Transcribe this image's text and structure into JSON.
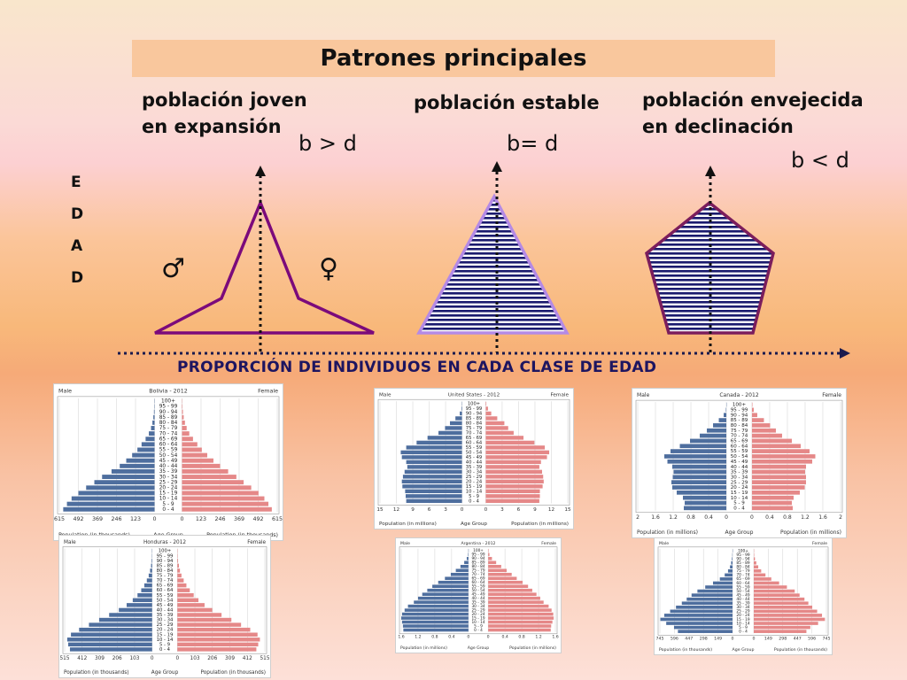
{
  "title": "Patrones principales",
  "columns": [
    {
      "label_line1": "población joven",
      "label_line2": "en expansión",
      "relation": "b > d"
    },
    {
      "label_line1": "población estable",
      "label_line2": "",
      "relation": "b= d"
    },
    {
      "label_line1": "población envejecida",
      "label_line2": "en declinación",
      "relation": "b < d"
    }
  ],
  "y_axis_letters": [
    "E",
    "D",
    "A",
    "D"
  ],
  "male_symbol": "♂",
  "female_symbol": "♀",
  "x_axis_title": "PROPORCIÓN DE INDIVIDUOS EN CADA CLASE DE EDAD",
  "colors": {
    "male_bar": "#4e6e9e",
    "female_bar": "#e58888",
    "shape_purple": "#7b0a7b",
    "stripe_navy": "#1a1a6e"
  },
  "pyramid_common": {
    "male": "Male",
    "female": "Female",
    "age_group": "Age Group",
    "age_groups": [
      "100+",
      "95 - 99",
      "90 - 94",
      "85 - 89",
      "80 - 84",
      "75 - 79",
      "70 - 74",
      "65 - 69",
      "60 - 64",
      "55 - 59",
      "50 - 54",
      "45 - 49",
      "40 - 44",
      "35 - 39",
      "30 - 34",
      "25 - 29",
      "20 - 24",
      "15 - 19",
      "10 - 14",
      "5 - 9",
      "0 - 4"
    ]
  },
  "chart_data": [
    {
      "type": "bar",
      "title": "Bolivia - 2012",
      "male_ticks": [
        "615",
        "492",
        "369",
        "246",
        "123",
        "0"
      ],
      "female_ticks": [
        "0",
        "123",
        "246",
        "369",
        "492",
        "615"
      ],
      "male_xlabel": "Population (in thousands)",
      "female_xlabel": "Population (in thousands)",
      "male": [
        1,
        2,
        4,
        8,
        14,
        23,
        37,
        58,
        84,
        111,
        145,
        183,
        225,
        278,
        339,
        389,
        442,
        492,
        536,
        566,
        590
      ],
      "female": [
        1,
        3,
        6,
        11,
        19,
        30,
        47,
        71,
        99,
        128,
        163,
        203,
        246,
        298,
        351,
        398,
        447,
        494,
        532,
        558,
        580
      ]
    },
    {
      "type": "bar",
      "title": "Honduras - 2012",
      "male_ticks": [
        "515",
        "412",
        "309",
        "206",
        "103",
        "0"
      ],
      "female_ticks": [
        "0",
        "103",
        "206",
        "309",
        "412",
        "515"
      ],
      "male_xlabel": "Population (in thousands)",
      "female_xlabel": "Population (in thousands)",
      "male": [
        0,
        1,
        3,
        6,
        12,
        20,
        31,
        46,
        64,
        86,
        114,
        150,
        196,
        253,
        312,
        372,
        430,
        478,
        500,
        494,
        484
      ],
      "female": [
        0,
        2,
        4,
        9,
        15,
        24,
        37,
        53,
        73,
        96,
        124,
        160,
        205,
        260,
        318,
        375,
        429,
        472,
        486,
        476,
        465
      ]
    },
    {
      "type": "bar",
      "title": "United States - 2012",
      "male_ticks": [
        "15",
        "12",
        "9",
        "6",
        "3",
        "0"
      ],
      "female_ticks": [
        "0",
        "3",
        "6",
        "9",
        "12",
        "15"
      ],
      "male_xlabel": "Population (in millions)",
      "female_xlabel": "Population (in millions)",
      "male": [
        0,
        0.1,
        0.4,
        1.2,
        2.2,
        3.1,
        4.3,
        6.3,
        8.3,
        10.2,
        11.2,
        11.0,
        10.2,
        10.0,
        10.5,
        10.8,
        11.0,
        10.9,
        10.4,
        10.3,
        10.2
      ],
      "female": [
        0.1,
        0.4,
        1.0,
        2.1,
        3.4,
        4.1,
        5.1,
        6.9,
        8.9,
        10.8,
        11.6,
        11.2,
        10.1,
        9.8,
        10.3,
        10.5,
        10.6,
        10.4,
        9.9,
        9.9,
        9.8
      ]
    },
    {
      "type": "bar",
      "title": "Argentina - 2012",
      "male_ticks": [
        "1.6",
        "1.2",
        "0.8",
        "0.4",
        "0"
      ],
      "female_ticks": [
        "0",
        "0.4",
        "0.8",
        "1.2",
        "1.6"
      ],
      "male_xlabel": "Population (in millions)",
      "female_xlabel": "Population (in millions)",
      "male": [
        0,
        0.01,
        0.04,
        0.1,
        0.19,
        0.3,
        0.42,
        0.56,
        0.72,
        0.86,
        0.98,
        1.1,
        1.2,
        1.3,
        1.44,
        1.52,
        1.58,
        1.6,
        1.58,
        1.56,
        1.55
      ],
      "female": [
        0.01,
        0.03,
        0.09,
        0.19,
        0.31,
        0.44,
        0.56,
        0.68,
        0.82,
        0.95,
        1.05,
        1.15,
        1.24,
        1.32,
        1.44,
        1.51,
        1.55,
        1.56,
        1.53,
        1.5,
        1.49
      ]
    },
    {
      "type": "bar",
      "title": "Canada - 2012",
      "male_ticks": [
        "2",
        "1.6",
        "1.2",
        "0.8",
        "0.4",
        "0"
      ],
      "female_ticks": [
        "0",
        "0.4",
        "0.8",
        "1.2",
        "1.6",
        "2"
      ],
      "male_xlabel": "Population (in millions)",
      "female_xlabel": "Population (in millions)",
      "male": [
        0,
        0.01,
        0.06,
        0.17,
        0.3,
        0.44,
        0.6,
        0.82,
        1.05,
        1.26,
        1.4,
        1.33,
        1.22,
        1.19,
        1.21,
        1.24,
        1.22,
        1.12,
        0.98,
        0.94,
        0.96
      ],
      "female": [
        0.01,
        0.04,
        0.12,
        0.27,
        0.41,
        0.54,
        0.68,
        0.9,
        1.1,
        1.3,
        1.43,
        1.36,
        1.22,
        1.2,
        1.22,
        1.22,
        1.19,
        1.08,
        0.94,
        0.9,
        0.92
      ]
    },
    {
      "type": "bar",
      "title": "",
      "male_ticks": [
        "745",
        "596",
        "447",
        "298",
        "149",
        "0"
      ],
      "female_ticks": [
        "0",
        "149",
        "298",
        "447",
        "596",
        "745"
      ],
      "male_xlabel": "Population (in thousands)",
      "female_xlabel": "Population (in thousands)",
      "male": [
        0,
        2,
        6,
        14,
        26,
        46,
        80,
        130,
        200,
        280,
        360,
        420,
        470,
        520,
        580,
        640,
        700,
        740,
        680,
        600,
        560
      ],
      "female": [
        0,
        4,
        12,
        26,
        46,
        76,
        120,
        180,
        260,
        340,
        420,
        470,
        520,
        560,
        600,
        650,
        700,
        730,
        660,
        580,
        540
      ]
    }
  ]
}
